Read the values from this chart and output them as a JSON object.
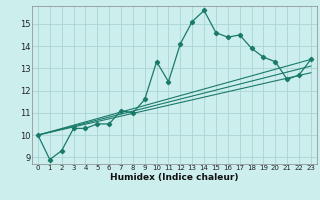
{
  "title": "",
  "xlabel": "Humidex (Indice chaleur)",
  "bg_color": "#cceeed",
  "grid_color": "#aad4d3",
  "line_color": "#1a7a6a",
  "xlim": [
    -0.5,
    23.5
  ],
  "ylim": [
    8.7,
    15.8
  ],
  "yticks": [
    9,
    10,
    11,
    12,
    13,
    14,
    15
  ],
  "xticks": [
    0,
    1,
    2,
    3,
    4,
    5,
    6,
    7,
    8,
    9,
    10,
    11,
    12,
    13,
    14,
    15,
    16,
    17,
    18,
    19,
    20,
    21,
    22,
    23
  ],
  "series": [
    [
      0,
      10.0
    ],
    [
      1,
      8.9
    ],
    [
      2,
      9.3
    ],
    [
      3,
      10.3
    ],
    [
      4,
      10.3
    ],
    [
      5,
      10.5
    ],
    [
      6,
      10.5
    ],
    [
      7,
      11.1
    ],
    [
      8,
      11.0
    ],
    [
      9,
      11.6
    ],
    [
      10,
      13.3
    ],
    [
      11,
      12.4
    ],
    [
      12,
      14.1
    ],
    [
      13,
      15.1
    ],
    [
      14,
      15.6
    ],
    [
      15,
      14.6
    ],
    [
      16,
      14.4
    ],
    [
      17,
      14.5
    ],
    [
      18,
      13.9
    ],
    [
      19,
      13.5
    ],
    [
      20,
      13.3
    ],
    [
      21,
      12.5
    ],
    [
      22,
      12.7
    ],
    [
      23,
      13.4
    ]
  ],
  "linear_series": [
    [
      0,
      10.0
    ],
    [
      23,
      13.4
    ]
  ],
  "linear_series2": [
    [
      0,
      10.0
    ],
    [
      23,
      13.1
    ]
  ],
  "linear_series3": [
    [
      0,
      10.0
    ],
    [
      23,
      12.8
    ]
  ]
}
